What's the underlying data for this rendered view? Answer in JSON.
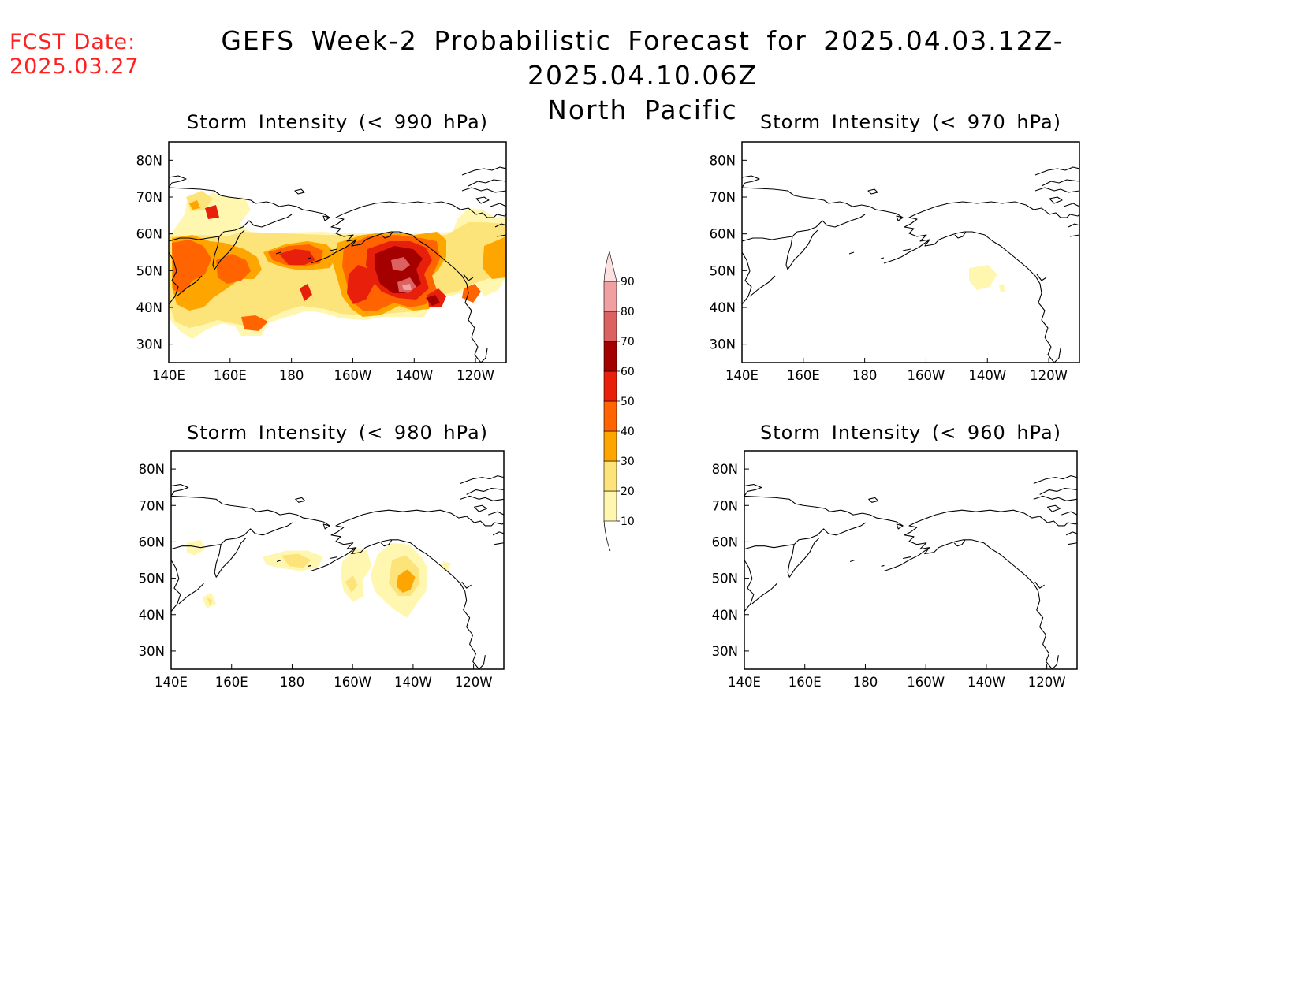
{
  "header": {
    "fcst_date_label": "FCST Date:",
    "fcst_date_value": "2025.03.27",
    "title_line1": "GEFS Week-2 Probabilistic Forecast for 2025.04.03.12Z-2025.04.10.06Z",
    "title_line2": "North Pacific"
  },
  "axes": {
    "lon_ticks": [
      "140E",
      "160E",
      "180",
      "160W",
      "140W",
      "120W"
    ],
    "lat_ticks": [
      "80N",
      "70N",
      "60N",
      "50N",
      "40N",
      "30N"
    ]
  },
  "panels": [
    {
      "id": "p990",
      "title": "Storm Intensity (< 990 hPa)"
    },
    {
      "id": "p970",
      "title": "Storm Intensity (< 970 hPa)"
    },
    {
      "id": "p980",
      "title": "Storm Intensity (< 980 hPa)"
    },
    {
      "id": "p960",
      "title": "Storm Intensity (< 960 hPa)"
    }
  ],
  "colorbar": {
    "levels": [
      "10",
      "20",
      "30",
      "40",
      "50",
      "60",
      "70",
      "80",
      "90"
    ],
    "colors": [
      "#fff7b0",
      "#fde47a",
      "#ffa500",
      "#ff6400",
      "#e8200b",
      "#a50000",
      "#dc6262",
      "#f0a0a0",
      "#fde0e0"
    ]
  },
  "map_extent": {
    "lon_range": [
      "140E",
      "110W"
    ],
    "lat_range": [
      "25N",
      "85N"
    ]
  }
}
